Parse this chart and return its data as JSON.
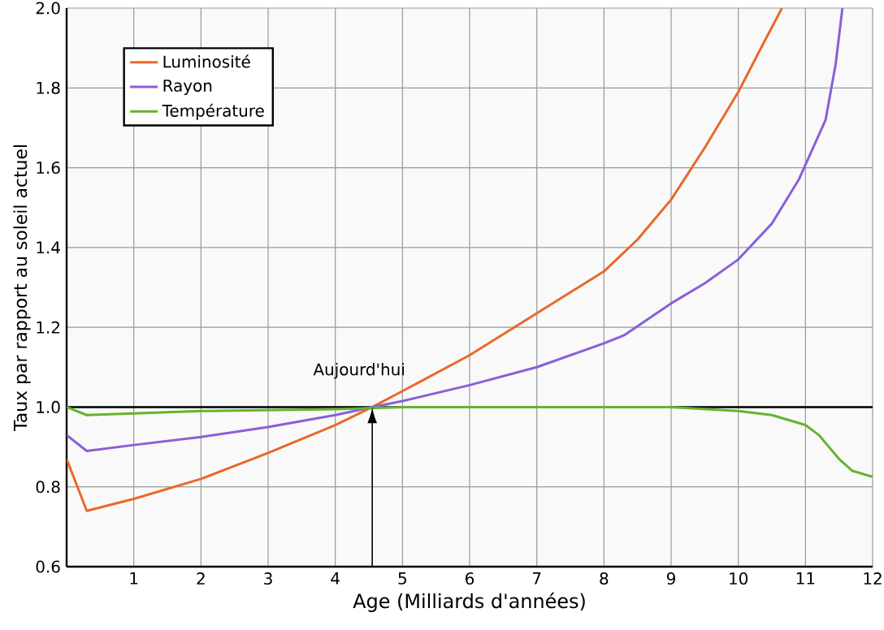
{
  "chart_data": {
    "type": "line",
    "xlabel": "Age (Milliards d'années)",
    "ylabel": "Taux par rapport au soleil actuel",
    "xlim": [
      0,
      12
    ],
    "xticks": [
      1,
      2,
      3,
      4,
      5,
      6,
      7,
      8,
      9,
      10,
      11,
      12
    ],
    "ylim": [
      0.6,
      2.0
    ],
    "yticks": [
      {
        "value": 0.6,
        "label": "0.6"
      },
      {
        "value": 0.8,
        "label": "0.8"
      },
      {
        "value": 1.0,
        "label": "1.0"
      },
      {
        "value": 1.2,
        "label": "1.2"
      },
      {
        "value": 1.4,
        "label": "1.4"
      },
      {
        "value": 1.6,
        "label": "1.6"
      },
      {
        "value": 1.8,
        "label": "1.8"
      },
      {
        "value": 2.0,
        "label": "2.0"
      }
    ],
    "grid": true,
    "legend": "top left",
    "ref_lines": [
      {
        "axis": "y",
        "value": 1.0,
        "color": "#000000"
      }
    ],
    "annotations": [
      {
        "text": "Aujourd'hui",
        "x": 4.55,
        "y": 1.0
      }
    ],
    "series": [
      {
        "name": "Luminosité",
        "color": "#e8692a",
        "x": [
          0,
          0.3,
          1,
          2,
          3,
          4,
          4.55,
          5,
          6,
          7,
          8,
          8.5,
          9,
          9.5,
          10,
          10.4,
          10.65
        ],
        "values": [
          0.87,
          0.74,
          0.77,
          0.82,
          0.885,
          0.955,
          1.0,
          1.04,
          1.13,
          1.235,
          1.34,
          1.42,
          1.52,
          1.65,
          1.79,
          1.92,
          2.0
        ]
      },
      {
        "name": "Rayon",
        "color": "#8a5fd8",
        "x": [
          0,
          0.3,
          1,
          2,
          3,
          4,
          4.55,
          5,
          6,
          7,
          8,
          8.3,
          9,
          9.5,
          10,
          10.5,
          10.9,
          11.3,
          11.45,
          11.55
        ],
        "values": [
          0.93,
          0.89,
          0.905,
          0.925,
          0.95,
          0.98,
          1.0,
          1.015,
          1.055,
          1.1,
          1.16,
          1.18,
          1.26,
          1.31,
          1.37,
          1.46,
          1.57,
          1.72,
          1.86,
          2.0
        ]
      },
      {
        "name": "Température",
        "color": "#66b32e",
        "x": [
          0,
          0.3,
          2,
          4,
          5,
          9,
          10,
          10.5,
          11,
          11.2,
          11.5,
          11.7,
          12
        ],
        "values": [
          1.0,
          0.98,
          0.99,
          0.995,
          1.0,
          1.0,
          0.99,
          0.98,
          0.955,
          0.93,
          0.87,
          0.84,
          0.825
        ]
      }
    ]
  }
}
